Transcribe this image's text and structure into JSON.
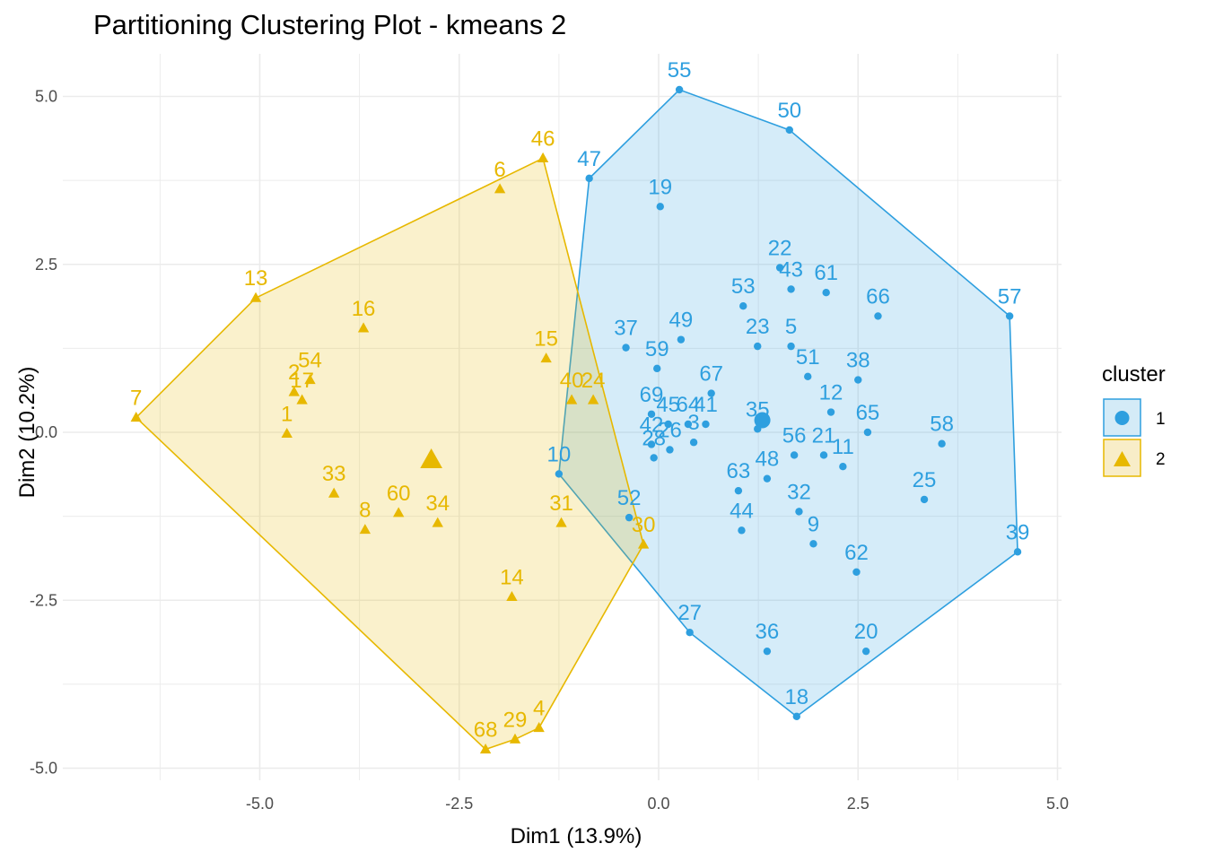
{
  "chart_data": {
    "type": "scatter",
    "title": "Partitioning Clustering Plot - kmeans 2",
    "xlabel": "Dim1 (13.9%)",
    "ylabel": "Dim2 (10.2%)",
    "xlim": [
      -6.55,
      5.0
    ],
    "ylim": [
      -5.0,
      5.15
    ],
    "xticks": [
      -5.0,
      -2.5,
      0.0,
      2.5,
      5.0
    ],
    "xtick_labels": [
      "-5.0",
      "-2.5",
      "0.0",
      "2.5",
      "5.0"
    ],
    "yticks": [
      -5.0,
      -2.5,
      0.0,
      2.5,
      5.0
    ],
    "ytick_labels": [
      "-5.0",
      "-2.5",
      "0.0",
      "2.5",
      "5.0"
    ],
    "grid": true,
    "legend": {
      "title": "cluster",
      "position": "right",
      "entries": [
        "1",
        "2"
      ]
    },
    "colors": {
      "1": "#2E9FDF",
      "2": "#E7B800"
    },
    "fills": {
      "1": "#D4EBF7",
      "2": "#F8EDC8"
    },
    "series": [
      {
        "name": "1",
        "marker": "circle",
        "centroid": [
          1.3,
          0.18
        ],
        "hull": [
          "55",
          "50",
          "57",
          "39",
          "18",
          "27",
          "10",
          "47"
        ],
        "points": [
          {
            "label": "55",
            "x": 0.26,
            "y": 5.1
          },
          {
            "label": "50",
            "x": 1.64,
            "y": 4.5
          },
          {
            "label": "47",
            "x": -0.87,
            "y": 3.78
          },
          {
            "label": "19",
            "x": 0.02,
            "y": 3.36
          },
          {
            "label": "22",
            "x": 1.52,
            "y": 2.45
          },
          {
            "label": "43",
            "x": 1.66,
            "y": 2.13
          },
          {
            "label": "61",
            "x": 2.1,
            "y": 2.08
          },
          {
            "label": "66",
            "x": 2.75,
            "y": 1.73
          },
          {
            "label": "57",
            "x": 4.4,
            "y": 1.73
          },
          {
            "label": "53",
            "x": 1.06,
            "y": 1.88
          },
          {
            "label": "37",
            "x": -0.41,
            "y": 1.26
          },
          {
            "label": "49",
            "x": 0.28,
            "y": 1.38
          },
          {
            "label": "23",
            "x": 1.24,
            "y": 1.28
          },
          {
            "label": "5",
            "x": 1.66,
            "y": 1.28
          },
          {
            "label": "59",
            "x": -0.02,
            "y": 0.95
          },
          {
            "label": "51",
            "x": 1.87,
            "y": 0.83
          },
          {
            "label": "38",
            "x": 2.5,
            "y": 0.78
          },
          {
            "label": "67",
            "x": 0.66,
            "y": 0.58
          },
          {
            "label": "12",
            "x": 2.16,
            "y": 0.3
          },
          {
            "label": "69",
            "x": -0.09,
            "y": 0.27
          },
          {
            "label": "45",
            "x": 0.12,
            "y": 0.12
          },
          {
            "label": "64",
            "x": 0.37,
            "y": 0.12
          },
          {
            "label": "41",
            "x": 0.59,
            "y": 0.12
          },
          {
            "label": "35",
            "x": 1.24,
            "y": 0.05
          },
          {
            "label": "65",
            "x": 2.62,
            "y": 0.0
          },
          {
            "label": "58",
            "x": 3.55,
            "y": -0.17
          },
          {
            "label": "42",
            "x": -0.09,
            "y": -0.18
          },
          {
            "label": "26",
            "x": 0.14,
            "y": -0.26
          },
          {
            "label": "3",
            "x": 0.44,
            "y": -0.15
          },
          {
            "label": "28",
            "x": -0.06,
            "y": -0.38
          },
          {
            "label": "56",
            "x": 1.7,
            "y": -0.34
          },
          {
            "label": "21",
            "x": 2.07,
            "y": -0.34
          },
          {
            "label": "11",
            "x": 2.31,
            "y": -0.51
          },
          {
            "label": "48",
            "x": 1.36,
            "y": -0.69
          },
          {
            "label": "63",
            "x": 1.0,
            "y": -0.87
          },
          {
            "label": "10",
            "x": -1.25,
            "y": -0.62
          },
          {
            "label": "25",
            "x": 3.33,
            "y": -1.0
          },
          {
            "label": "32",
            "x": 1.76,
            "y": -1.18
          },
          {
            "label": "52",
            "x": -0.37,
            "y": -1.27
          },
          {
            "label": "9",
            "x": 1.94,
            "y": -1.66
          },
          {
            "label": "44",
            "x": 1.04,
            "y": -1.46
          },
          {
            "label": "39",
            "x": 4.5,
            "y": -1.78
          },
          {
            "label": "62",
            "x": 2.48,
            "y": -2.08
          },
          {
            "label": "27",
            "x": 0.39,
            "y": -2.98
          },
          {
            "label": "36",
            "x": 1.36,
            "y": -3.26
          },
          {
            "label": "20",
            "x": 2.6,
            "y": -3.26
          },
          {
            "label": "18",
            "x": 1.73,
            "y": -4.23
          }
        ]
      },
      {
        "name": "2",
        "marker": "triangle",
        "centroid": [
          -2.85,
          -0.4
        ],
        "hull": [
          "46",
          "30",
          "4",
          "29",
          "68",
          "7",
          "13"
        ],
        "points": [
          {
            "label": "46",
            "x": -1.45,
            "y": 4.08
          },
          {
            "label": "6",
            "x": -1.99,
            "y": 3.62
          },
          {
            "label": "13",
            "x": -5.05,
            "y": 2.0
          },
          {
            "label": "16",
            "x": -3.7,
            "y": 1.55
          },
          {
            "label": "15",
            "x": -1.41,
            "y": 1.1
          },
          {
            "label": "54",
            "x": -4.37,
            "y": 0.78
          },
          {
            "label": "2",
            "x": -4.57,
            "y": 0.6
          },
          {
            "label": "17",
            "x": -4.47,
            "y": 0.48
          },
          {
            "label": "40",
            "x": -1.09,
            "y": 0.48
          },
          {
            "label": "24",
            "x": -0.82,
            "y": 0.48
          },
          {
            "label": "7",
            "x": -6.55,
            "y": 0.22
          },
          {
            "label": "1",
            "x": -4.66,
            "y": -0.02
          },
          {
            "label": "33",
            "x": -4.07,
            "y": -0.91
          },
          {
            "label": "60",
            "x": -3.26,
            "y": -1.2
          },
          {
            "label": "34",
            "x": -2.77,
            "y": -1.35
          },
          {
            "label": "31",
            "x": -1.22,
            "y": -1.35
          },
          {
            "label": "8",
            "x": -3.68,
            "y": -1.45
          },
          {
            "label": "30",
            "x": -0.19,
            "y": -1.67
          },
          {
            "label": "14",
            "x": -1.84,
            "y": -2.45
          },
          {
            "label": "4",
            "x": -1.5,
            "y": -4.4
          },
          {
            "label": "29",
            "x": -1.8,
            "y": -4.57
          },
          {
            "label": "68",
            "x": -2.17,
            "y": -4.72
          }
        ]
      }
    ]
  }
}
